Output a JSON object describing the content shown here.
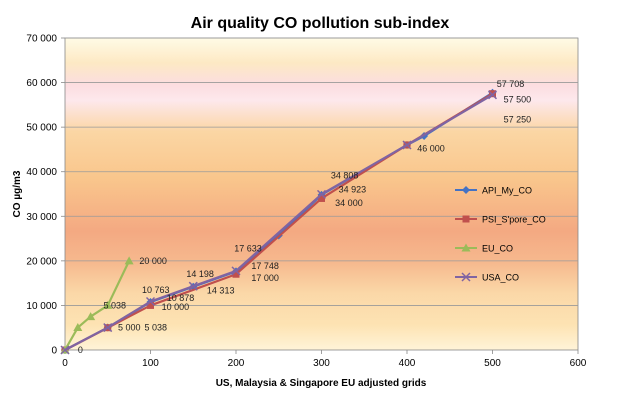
{
  "chart_data": {
    "type": "line",
    "title": "Air quality CO pollution sub-index",
    "xlabel": "US, Malaysia & Singapore  EU adjusted grids",
    "ylabel": "CO µg/m3",
    "xlim": [
      0,
      600
    ],
    "ylim": [
      0,
      70000
    ],
    "xticks": [
      "0",
      "100",
      "200",
      "300",
      "400",
      "500",
      "600"
    ],
    "yticks": [
      "0",
      "10 000",
      "20 000",
      "30 000",
      "40 000",
      "50 000",
      "60 000",
      "70 000"
    ],
    "grid": "horizontal",
    "legend_position": "right",
    "series": [
      {
        "name": "API_My_CO",
        "color": "#4472C4",
        "marker": "diamond",
        "points": [
          [
            0,
            0
          ],
          [
            50,
            5038
          ],
          [
            100,
            10763
          ],
          [
            150,
            14198
          ],
          [
            200,
            17633
          ],
          [
            250,
            25700
          ],
          [
            300,
            34808
          ],
          [
            400,
            46000
          ],
          [
            420,
            48000
          ],
          [
            500,
            57708
          ]
        ]
      },
      {
        "name": "PSI_S'pore_CO",
        "color": "#C0504D",
        "marker": "square",
        "points": [
          [
            0,
            0
          ],
          [
            50,
            5000
          ],
          [
            100,
            10000
          ],
          [
            200,
            17000
          ],
          [
            300,
            34000
          ],
          [
            400,
            46000
          ],
          [
            500,
            57500
          ]
        ]
      },
      {
        "name": "EU_CO",
        "color": "#9BBB59",
        "marker": "triangle",
        "points": [
          [
            0,
            0
          ],
          [
            15,
            5038
          ],
          [
            30,
            7500
          ],
          [
            50,
            10000
          ],
          [
            75,
            20000
          ]
        ]
      },
      {
        "name": "USA_CO",
        "color": "#8064A2",
        "marker": "x",
        "points": [
          [
            0,
            0
          ],
          [
            50,
            5038
          ],
          [
            100,
            10878
          ],
          [
            150,
            14313
          ],
          [
            200,
            17748
          ],
          [
            300,
            34923
          ],
          [
            400,
            46000
          ],
          [
            500,
            57250
          ]
        ]
      }
    ],
    "data_labels": [
      {
        "text": "0",
        "x": 15,
        "y": 0
      },
      {
        "text": "5 000",
        "x": 62,
        "y": 5000
      },
      {
        "text": "5 038",
        "x": 93,
        "y": 5038
      },
      {
        "text": "5 038",
        "x": 45,
        "y": 10000
      },
      {
        "text": "20 000",
        "x": 87,
        "y": 20000
      },
      {
        "text": "10 763",
        "x": 90,
        "y": 13500
      },
      {
        "text": "10 878",
        "x": 119,
        "y": 11700
      },
      {
        "text": "10 000",
        "x": 113,
        "y": 9700
      },
      {
        "text": "14 198",
        "x": 142,
        "y": 17000
      },
      {
        "text": "14 313",
        "x": 166,
        "y": 13400
      },
      {
        "text": "17 633",
        "x": 198,
        "y": 22800
      },
      {
        "text": "17 748",
        "x": 218,
        "y": 18800
      },
      {
        "text": "17 000",
        "x": 218,
        "y": 16200
      },
      {
        "text": "34 808",
        "x": 311,
        "y": 39200
      },
      {
        "text": "34 923",
        "x": 320,
        "y": 36000
      },
      {
        "text": "34 000",
        "x": 316,
        "y": 33000
      },
      {
        "text": "46 000",
        "x": 412,
        "y": 45200
      },
      {
        "text": "57 708",
        "x": 505,
        "y": 59700
      },
      {
        "text": "57 500",
        "x": 513,
        "y": 56200
      },
      {
        "text": "57 250",
        "x": 513,
        "y": 51700
      }
    ]
  }
}
